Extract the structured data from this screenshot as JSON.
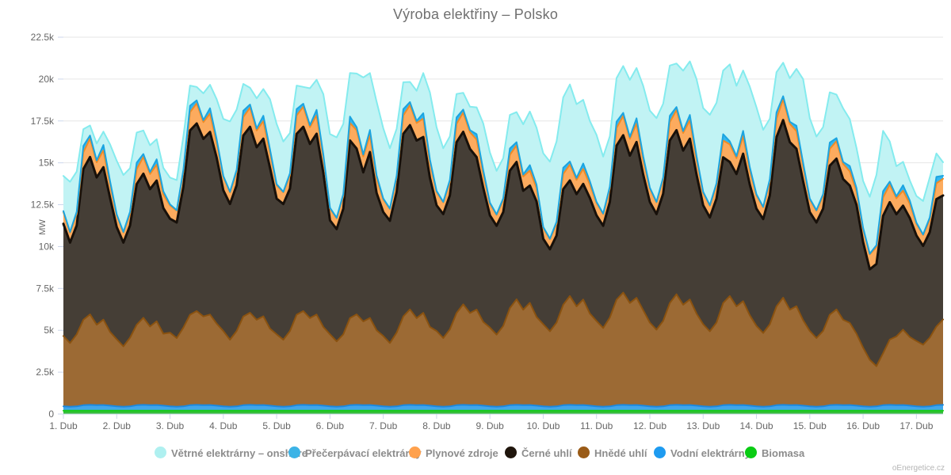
{
  "title": "Výroba elektřiny – Polsko",
  "watermark": "oEnergetice.cz",
  "y_axis": {
    "title": "MW",
    "min": 0,
    "max": 22500,
    "step": 2500,
    "tick_labels": [
      "0",
      "2.5k",
      "5k",
      "7.5k",
      "10k",
      "12.5k",
      "15k",
      "17.5k",
      "20k",
      "22.5k"
    ]
  },
  "x_axis": {
    "tick_labels": [
      "1. Dub",
      "2. Dub",
      "3. Dub",
      "4. Dub",
      "5. Dub",
      "6. Dub",
      "7. Dub",
      "8. Dub",
      "9. Dub",
      "10. Dub",
      "11. Dub",
      "12. Dub",
      "13. Dub",
      "14. Dub",
      "15. Dub",
      "16. Dub",
      "17. Dub"
    ]
  },
  "legend": {
    "items": [
      {
        "label": "Větrné elektrárny – onshore",
        "color": "#aff0f0"
      },
      {
        "label": "Přečerpávací elektrárny",
        "color": "#3cb3e6"
      },
      {
        "label": "Plynové zdroje",
        "color": "#ffa14d"
      },
      {
        "label": "Černé uhlí",
        "color": "#1f150c"
      },
      {
        "label": "Hnědé uhlí",
        "color": "#9a5b17"
      },
      {
        "label": "Vodní elektrárny",
        "color": "#1e9bf0"
      },
      {
        "label": "Biomasa",
        "color": "#0acc14"
      }
    ]
  },
  "chart_data": {
    "type": "area",
    "stacking": "normal",
    "title": "Výroba elektřiny – Polsko",
    "ylabel": "MW",
    "ylim": [
      0,
      22500
    ],
    "x_unit": "days (April)",
    "x_start": 0,
    "x_end": 16.5,
    "x_step_days": 0.125,
    "grid": true,
    "legend_position": "bottom",
    "series": [
      {
        "id": "biomasa",
        "name": "Biomasa",
        "fill": "#35bd3a",
        "line": "#16cb16",
        "daily_pattern": [
          200,
          200,
          200,
          200,
          200,
          200,
          200,
          200
        ]
      },
      {
        "id": "vodni",
        "name": "Vodní elektrárny",
        "fill": "#41a6ea",
        "line": "#1d88dd",
        "daily_pattern": [
          260,
          240,
          260,
          330,
          350,
          330,
          340,
          300
        ]
      },
      {
        "id": "hnede",
        "name": "Hnědé uhlí",
        "fill": "#9c6a34",
        "line": "#8a5210",
        "values": [
          4200,
          3800,
          4300,
          5100,
          5400,
          4800,
          5100,
          4400,
          4000,
          3600,
          4100,
          4800,
          5200,
          4700,
          5000,
          4300,
          4400,
          4100,
          4700,
          5400,
          5600,
          5300,
          5400,
          4900,
          4500,
          4000,
          4500,
          5300,
          5500,
          5100,
          5300,
          4600,
          4300,
          4000,
          4500,
          5400,
          5600,
          5200,
          5400,
          4700,
          4300,
          3900,
          4300,
          5200,
          5400,
          5000,
          5200,
          4500,
          4200,
          3800,
          4400,
          5300,
          5700,
          5200,
          5500,
          4700,
          4500,
          4100,
          4600,
          5500,
          6000,
          5500,
          5700,
          5000,
          4700,
          4300,
          4800,
          5800,
          6300,
          5700,
          6100,
          5300,
          4900,
          4500,
          5000,
          6000,
          6500,
          5900,
          6300,
          5500,
          5100,
          4700,
          5300,
          6300,
          6700,
          6100,
          6400,
          5700,
          5000,
          4600,
          5100,
          6100,
          6600,
          6000,
          6300,
          5500,
          4900,
          4500,
          5000,
          6100,
          6500,
          5900,
          6200,
          5400,
          4800,
          4400,
          4900,
          5900,
          6400,
          5700,
          5900,
          5100,
          4500,
          4100,
          4500,
          5400,
          5700,
          5100,
          4900,
          4300,
          3500,
          2800,
          2400,
          3100,
          3900,
          4100,
          4500,
          4100,
          3900,
          3700,
          4100,
          4700,
          5100
        ]
      },
      {
        "id": "cerne",
        "name": "Černé uhlí",
        "fill": "#453e36",
        "line": "#17100a",
        "values": [
          6700,
          6000,
          6500,
          9000,
          9400,
          8800,
          9100,
          8000,
          6700,
          6200,
          6700,
          8400,
          8600,
          8200,
          8400,
          7500,
          6800,
          6900,
          8400,
          11000,
          11200,
          10600,
          10900,
          9900,
          8400,
          8100,
          8700,
          10800,
          11100,
          10300,
          10600,
          9600,
          8100,
          8100,
          8500,
          10800,
          11000,
          10400,
          10800,
          9200,
          6800,
          6700,
          7500,
          10600,
          9900,
          8900,
          9900,
          8200,
          7400,
          7300,
          8400,
          10900,
          11000,
          10600,
          10500,
          8900,
          7500,
          7400,
          8000,
          10200,
          10300,
          9800,
          9100,
          8000,
          6700,
          6500,
          6800,
          8200,
          8200,
          7100,
          7000,
          6900,
          5100,
          4900,
          5200,
          6900,
          6900,
          6700,
          6900,
          6900,
          6300,
          6100,
          6900,
          9200,
          9400,
          8800,
          9300,
          8100,
          7200,
          6900,
          7600,
          9700,
          9800,
          9200,
          9600,
          8300,
          7100,
          6800,
          7400,
          8700,
          8000,
          7900,
          8800,
          7800,
          7000,
          6800,
          7700,
          10100,
          10600,
          10000,
          9400,
          8300,
          7100,
          6900,
          7300,
          8900,
          9000,
          8400,
          8200,
          7700,
          6300,
          5400,
          6100,
          8200,
          8200,
          7300,
          7400,
          7100,
          6300,
          5900,
          6300,
          7600,
          7400
        ]
      },
      {
        "id": "plyn",
        "name": "Plynové zdroje",
        "fill": "#fcab5e",
        "line": "#ef8b26",
        "values": [
          700,
          600,
          700,
          1000,
          1100,
          900,
          1000,
          800,
          700,
          600,
          700,
          900,
          1000,
          900,
          950,
          800,
          800,
          700,
          900,
          1100,
          1200,
          1000,
          1100,
          900,
          800,
          700,
          800,
          1100,
          1150,
          1000,
          1050,
          900,
          800,
          700,
          800,
          1100,
          1200,
          1000,
          1100,
          900,
          700,
          650,
          750,
          1050,
          1100,
          950,
          1000,
          850,
          750,
          700,
          850,
          1100,
          1200,
          1050,
          1100,
          900,
          800,
          700,
          800,
          1100,
          1150,
          1000,
          1050,
          850,
          700,
          650,
          700,
          950,
          1000,
          850,
          900,
          800,
          650,
          600,
          700,
          900,
          950,
          850,
          900,
          800,
          750,
          700,
          800,
          1050,
          1150,
          1000,
          1100,
          900,
          800,
          700,
          850,
          1100,
          1200,
          1050,
          1100,
          900,
          750,
          700,
          800,
          1000,
          1050,
          950,
          1050,
          850,
          800,
          700,
          850,
          1100,
          1250,
          1100,
          1050,
          900,
          750,
          700,
          750,
          1000,
          1050,
          900,
          850,
          800,
          800,
          900,
          1000,
          1100,
          1050,
          950,
          900,
          850,
          700,
          650,
          750,
          950,
          1000
        ]
      },
      {
        "id": "precerpavaci",
        "name": "Přečerpávací elektrárny",
        "fill": "#33b7f0",
        "line": "#1ba4e0",
        "daily_pattern": [
          60,
          30,
          120,
          380,
          180,
          120,
          320,
          200
        ]
      },
      {
        "id": "vetrne",
        "name": "Větrné elektrárny – onshore",
        "fill": "#c1f3f4",
        "line": "#84ebee",
        "values": [
          2100,
          3000,
          2400,
          1000,
          600,
          1000,
          800,
          2200,
          3200,
          3400,
          2600,
          1800,
          1400,
          1600,
          1200,
          1400,
          1600,
          1800,
          2000,
          1200,
          800,
          1600,
          1400,
          2400,
          3400,
          4200,
          3600,
          1600,
          1000,
          1800,
          1600,
          3000,
          3600,
          3000,
          2400,
          1400,
          1000,
          2200,
          1800,
          3600,
          4400,
          4800,
          4200,
          2600,
          3200,
          4600,
          3400,
          4400,
          4200,
          3600,
          2800,
          1600,
          1200,
          1800,
          2400,
          4000,
          3800,
          3200,
          2600,
          1400,
          1000,
          1400,
          1600,
          2800,
          3000,
          2600,
          2400,
          2000,
          1800,
          3000,
          3200,
          3400,
          4400,
          4600,
          4800,
          4200,
          4600,
          4400,
          3800,
          3600,
          4000,
          3400,
          3000,
          2600,
          2800,
          3400,
          3000,
          4200,
          4600,
          5000,
          4400,
          3000,
          2600,
          3600,
          3200,
          4600,
          5000,
          5400,
          4800,
          3800,
          4600,
          4200,
          3600,
          4800,
          5200,
          4600,
          3600,
          2400,
          2000,
          2600,
          3400,
          5000,
          4800,
          4400,
          4000,
          3000,
          2600,
          3200,
          2800,
          2400,
          2800,
          3400,
          4200,
          3600,
          2400,
          1800,
          1400,
          1200,
          1600,
          2000,
          2400,
          1400,
          800
        ]
      }
    ]
  }
}
